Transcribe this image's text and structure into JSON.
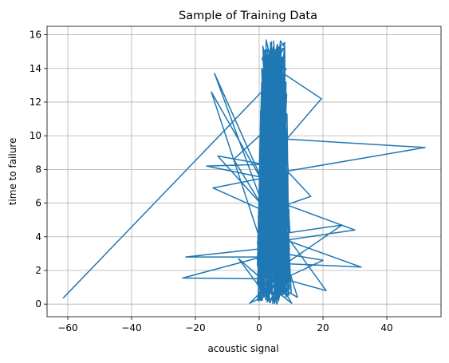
{
  "chart_data": {
    "type": "line",
    "title": "Sample of Training Data",
    "xlabel": "acoustic signal",
    "ylabel": "time to failure",
    "xlim": [
      -66.5,
      57.0
    ],
    "ylim": [
      -0.75,
      16.5
    ],
    "xticks": [
      -60,
      -40,
      -20,
      0,
      20,
      40
    ],
    "xtick_labels": [
      "−60",
      "−40",
      "−20",
      "0",
      "20",
      "40"
    ],
    "yticks": [
      0,
      2,
      4,
      6,
      8,
      10,
      12,
      14,
      16
    ],
    "ytick_labels": [
      "0",
      "2",
      "4",
      "6",
      "8",
      "10",
      "12",
      "14",
      "16"
    ],
    "grid": true,
    "legend": "none",
    "series": [
      {
        "color": "#1f77b4",
        "outline": {
          "x": [
            -61.5,
            6.8,
            19.5,
            8.6,
            52,
            8.8,
            16.2,
            8.6,
            30,
            8.5,
            32,
            8.3,
            26,
            8.0,
            21,
            7.6,
            20,
            7.8,
            12,
            7.5,
            10.2,
            6.5,
            5.5,
            4.5,
            3.5,
            2.0,
            -3.0,
            1.0,
            -6.5,
            0.8,
            -24,
            0.7,
            -23,
            1.2,
            -15,
            1.3,
            -14,
            1.3,
            -13,
            1.5,
            -16.5,
            1.6,
            -14.5,
            2.0,
            -8,
            1.8,
            1.5,
            3.0,
            1.5
          ],
          "y": [
            0.35,
            13.8,
            12.2,
            9.8,
            9.3,
            7.9,
            6.4,
            5.9,
            4.4,
            3.8,
            2.2,
            2.4,
            4.7,
            4.2,
            0.8,
            1.5,
            2.6,
            3.0,
            0.4,
            0.9,
            0.05,
            0.6,
            0.0,
            0.7,
            0.1,
            0.5,
            0.05,
            0.8,
            2.7,
            1.5,
            1.55,
            2.8,
            2.8,
            3.3,
            12.6,
            7.2,
            13.7,
            5.8,
            8.8,
            8.3,
            8.2,
            7.5,
            6.9,
            5.5,
            8.6,
            10.3,
            14.6,
            14.0,
            5.0
          ]
        },
        "dense_core": {
          "x_range": [
            -1.0,
            10.2
          ],
          "y_range": [
            0.0,
            15.7
          ],
          "samples": 700
        }
      }
    ]
  }
}
